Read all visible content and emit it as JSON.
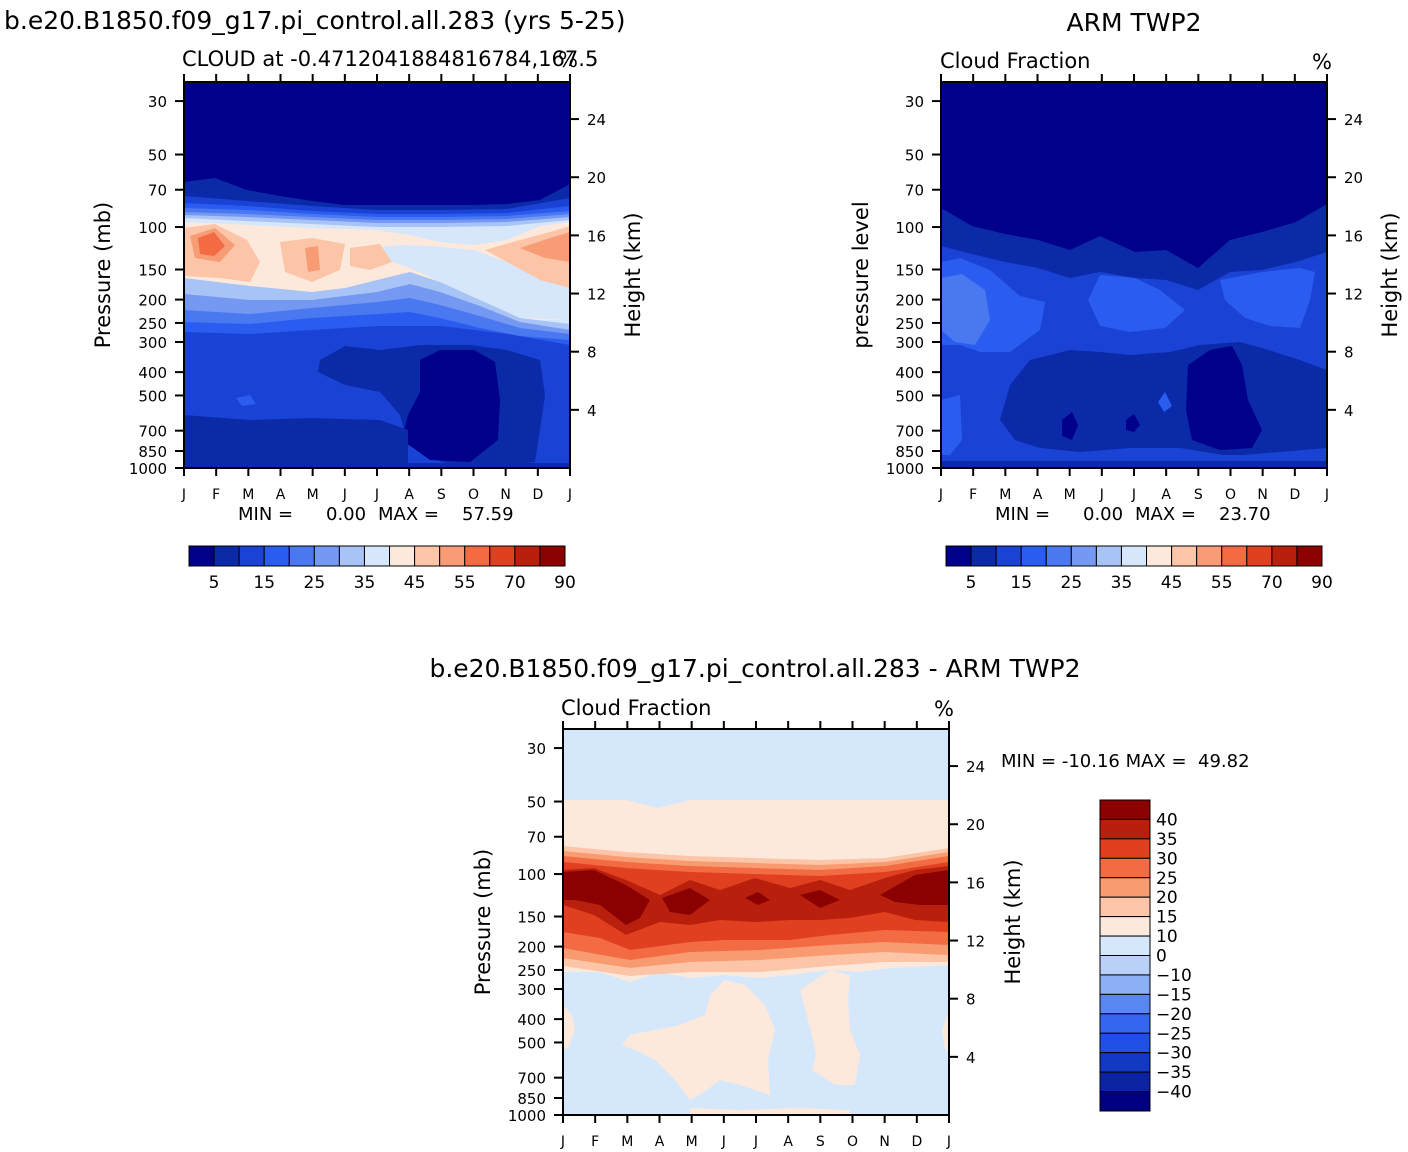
{
  "header": {
    "run_title": "b.e20.B1850.f09_g17.pi_control.all.283 (yrs 5-25)",
    "obs_title": "ARM TWP2",
    "diff_title": "b.e20.B1850.f09_g17.pi_control.all.283 - ARM TWP2"
  },
  "panels": [
    {
      "id": "model",
      "subtitle": "CLOUD at -0.4712041884816784,167.5",
      "units": "%",
      "ylabel_left": "Pressure (mb)",
      "ylabel_right": "Height (km)",
      "min_label": "MIN =",
      "min_value": "0.00",
      "max_label": "MAX =",
      "max_value": "57.59"
    },
    {
      "id": "obs",
      "subtitle": "Cloud Fraction",
      "units": "%",
      "ylabel_left": "pressure level",
      "ylabel_right": "Height (km)",
      "min_label": "MIN =",
      "min_value": "0.00",
      "max_label": "MAX =",
      "max_value": "23.70"
    },
    {
      "id": "diff",
      "subtitle": "Cloud Fraction",
      "units": "%",
      "ylabel_left": "Pressure (mb)",
      "ylabel_right": "Height (km)",
      "minmax_text": "MIN = -10.16 MAX =  49.82"
    }
  ],
  "colors": {
    "seq": [
      "#00008b",
      "#0b2aa8",
      "#1a43d6",
      "#2a5cf0",
      "#4a78f0",
      "#7598f2",
      "#a8c3f5",
      "#d6e6fb",
      "#fde9dc",
      "#fcc5a8",
      "#f89c76",
      "#f36b43",
      "#e0401f",
      "#b8200d",
      "#8b0000"
    ],
    "diff": [
      "#000080",
      "#0b23a3",
      "#1238c4",
      "#1f4fe4",
      "#3566f0",
      "#5a86f2",
      "#8daff5",
      "#b9d0f8",
      "#d5e8fb",
      "#fde9dc",
      "#fcc5a8",
      "#f99b70",
      "#f36b43",
      "#e0401f",
      "#b8200d",
      "#8b0000"
    ]
  },
  "chart_data": [
    {
      "type": "contour",
      "title": "CLOUD at -0.4712041884816784,167.5",
      "x_ticks": [
        "J",
        "F",
        "M",
        "A",
        "M",
        "J",
        "J",
        "A",
        "S",
        "O",
        "N",
        "D",
        "J"
      ],
      "y_ticks_pressure": [
        30,
        50,
        70,
        100,
        150,
        200,
        250,
        300,
        400,
        500,
        700,
        850,
        1000
      ],
      "y_ticks_height_km": [
        24,
        20,
        16,
        12,
        8,
        4
      ],
      "colorbar_labels": [
        "5",
        "15",
        "25",
        "35",
        "45",
        "55",
        "70",
        "90"
      ],
      "levels": [
        0,
        5,
        10,
        15,
        20,
        25,
        30,
        35,
        40,
        45,
        50,
        55,
        60,
        70,
        80,
        90
      ],
      "min": 0.0,
      "max": 57.59
    },
    {
      "type": "contour",
      "title": "Cloud Fraction",
      "x_ticks": [
        "J",
        "F",
        "M",
        "A",
        "M",
        "J",
        "J",
        "A",
        "S",
        "O",
        "N",
        "D",
        "J"
      ],
      "y_ticks_pressure": [
        30,
        50,
        70,
        100,
        150,
        200,
        250,
        300,
        400,
        500,
        700,
        850,
        1000
      ],
      "y_ticks_height_km": [
        24,
        20,
        16,
        12,
        8,
        4
      ],
      "colorbar_labels": [
        "5",
        "15",
        "25",
        "35",
        "45",
        "55",
        "70",
        "90"
      ],
      "levels": [
        0,
        5,
        10,
        15,
        20,
        25,
        30,
        35,
        40,
        45,
        50,
        55,
        60,
        70,
        80,
        90
      ],
      "min": 0.0,
      "max": 23.7
    },
    {
      "type": "contour",
      "title": "Cloud Fraction",
      "x_ticks": [
        "J",
        "F",
        "M",
        "A",
        "M",
        "J",
        "J",
        "A",
        "S",
        "O",
        "N",
        "D",
        "J"
      ],
      "y_ticks_pressure": [
        30,
        50,
        70,
        100,
        150,
        200,
        250,
        300,
        400,
        500,
        700,
        850,
        1000
      ],
      "y_ticks_height_km": [
        24,
        20,
        16,
        12,
        8,
        4
      ],
      "colorbar_labels": [
        "40",
        "35",
        "30",
        "25",
        "20",
        "15",
        "10",
        "0",
        "-10",
        "-15",
        "-20",
        "-25",
        "-30",
        "-35",
        "-40"
      ],
      "min": -10.16,
      "max": 49.82
    }
  ]
}
